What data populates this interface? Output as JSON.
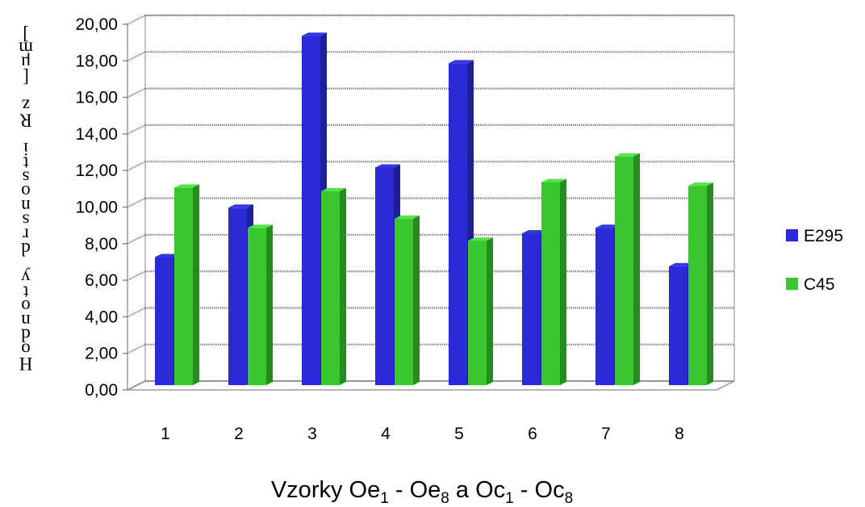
{
  "chart_data": {
    "type": "bar",
    "categories": [
      "1",
      "2",
      "3",
      "4",
      "5",
      "6",
      "7",
      "8"
    ],
    "series": [
      {
        "name": "E295",
        "color": "#2b2bd6",
        "values": [
          7.0,
          9.7,
          19.1,
          11.9,
          17.6,
          8.3,
          8.6,
          6.5
        ]
      },
      {
        "name": "C45",
        "color": "#39c630",
        "values": [
          10.8,
          8.6,
          10.6,
          9.1,
          7.9,
          11.1,
          12.5,
          10.9
        ]
      }
    ],
    "ylim": [
      0,
      20
    ],
    "ytick_labels": [
      "0,00",
      "2,00",
      "4,00",
      "6,00",
      "8,00",
      "10,00",
      "12,00",
      "14,00",
      "16,00",
      "18,00",
      "20,00"
    ],
    "xlabel": {
      "parts": [
        "Vzorky Oe",
        "1",
        " - Oe",
        "8",
        " a Oc",
        "1",
        " - Oc",
        "8"
      ]
    },
    "ylabel": "Hodnoty drsnosti Rz [μm]",
    "legend_position": "right",
    "grid": true,
    "style": "3d-column"
  }
}
